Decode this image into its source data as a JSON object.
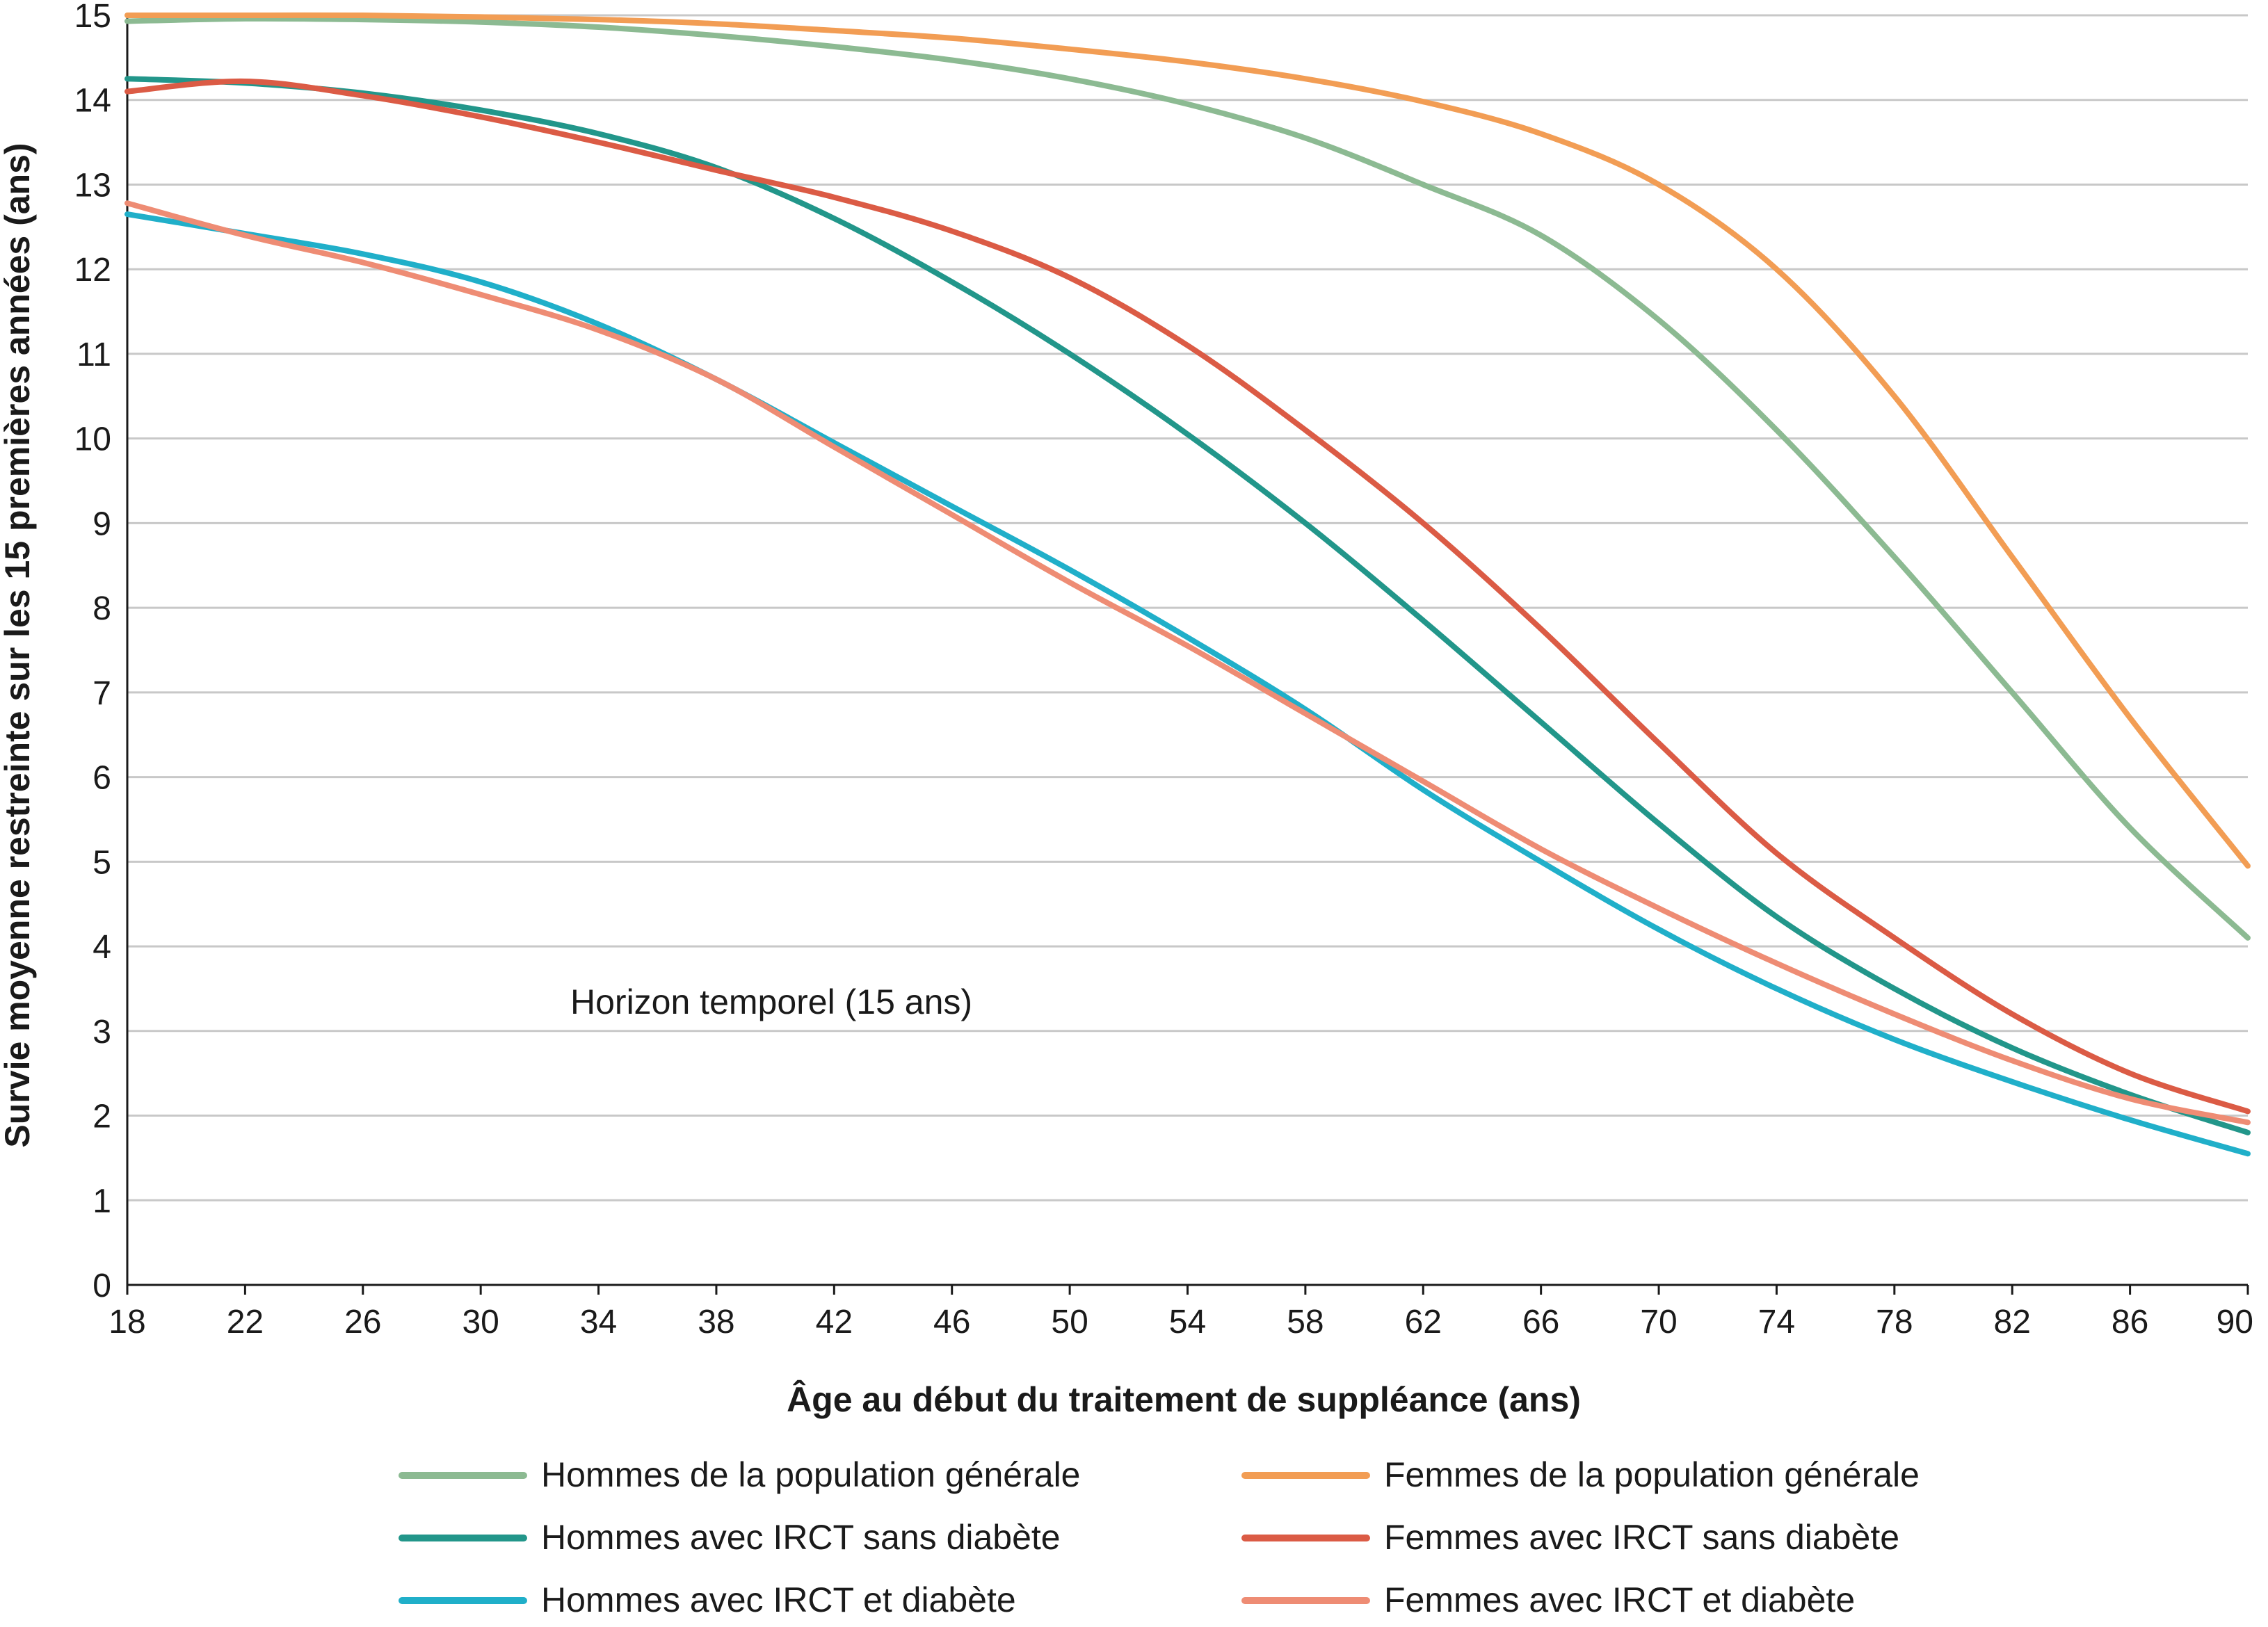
{
  "chart_data": {
    "type": "line",
    "title": "",
    "xlabel": "Âge au début du traitement de suppléance (ans)",
    "ylabel": "Survie moyenne restreinte sur les 15 premières années (ans)",
    "xlim": [
      18,
      90
    ],
    "ylim": [
      0,
      15
    ],
    "xticks": [
      18,
      22,
      26,
      30,
      34,
      38,
      42,
      46,
      50,
      54,
      58,
      62,
      66,
      70,
      74,
      78,
      82,
      86,
      90
    ],
    "yticks": [
      0,
      1,
      2,
      3,
      4,
      5,
      6,
      7,
      8,
      9,
      10,
      11,
      12,
      13,
      14,
      15
    ],
    "grid": "horizontal",
    "legend_position": "bottom",
    "annotation": "Horizon temporel (15 ans)",
    "x": [
      18,
      22,
      26,
      30,
      34,
      38,
      42,
      46,
      50,
      54,
      58,
      62,
      66,
      70,
      74,
      78,
      82,
      86,
      90
    ],
    "series": [
      {
        "name": "Hommes de la population générale",
        "color": "#8cba92",
        "values": [
          14.93,
          14.96,
          14.95,
          14.92,
          14.86,
          14.76,
          14.63,
          14.47,
          14.25,
          13.95,
          13.55,
          13.0,
          12.4,
          11.4,
          10.1,
          8.6,
          7.0,
          5.4,
          4.1
        ]
      },
      {
        "name": "Femmes de la population générale",
        "color": "#f29d54",
        "values": [
          15.0,
          15.0,
          15.0,
          14.98,
          14.95,
          14.9,
          14.82,
          14.73,
          14.6,
          14.45,
          14.25,
          13.98,
          13.6,
          13.0,
          12.0,
          10.5,
          8.6,
          6.7,
          4.95
        ]
      },
      {
        "name": "Hommes avec IRCT sans diabète",
        "color": "#22968a",
        "values": [
          14.25,
          14.2,
          14.08,
          13.88,
          13.6,
          13.2,
          12.6,
          11.85,
          11.0,
          10.05,
          9.0,
          7.85,
          6.65,
          5.45,
          4.35,
          3.5,
          2.8,
          2.25,
          1.8
        ]
      },
      {
        "name": "Femmes avec IRCT sans diabète",
        "color": "#db5b45",
        "values": [
          14.1,
          14.22,
          14.05,
          13.8,
          13.5,
          13.17,
          12.85,
          12.45,
          11.9,
          11.1,
          10.1,
          9.0,
          7.75,
          6.4,
          5.1,
          4.1,
          3.2,
          2.5,
          2.05
        ]
      },
      {
        "name": "Hommes avec IRCT et diabète",
        "color": "#20afc9",
        "values": [
          12.65,
          12.42,
          12.18,
          11.85,
          11.35,
          10.7,
          9.95,
          9.2,
          8.45,
          7.65,
          6.8,
          5.85,
          5.0,
          4.2,
          3.5,
          2.9,
          2.4,
          1.95,
          1.55
        ]
      },
      {
        "name": "Femmes avec IRCT et diabète",
        "color": "#ee8c74",
        "values": [
          12.78,
          12.4,
          12.08,
          11.7,
          11.28,
          10.7,
          9.9,
          9.1,
          8.3,
          7.55,
          6.75,
          5.95,
          5.15,
          4.45,
          3.8,
          3.2,
          2.65,
          2.2,
          1.92
        ]
      }
    ]
  }
}
